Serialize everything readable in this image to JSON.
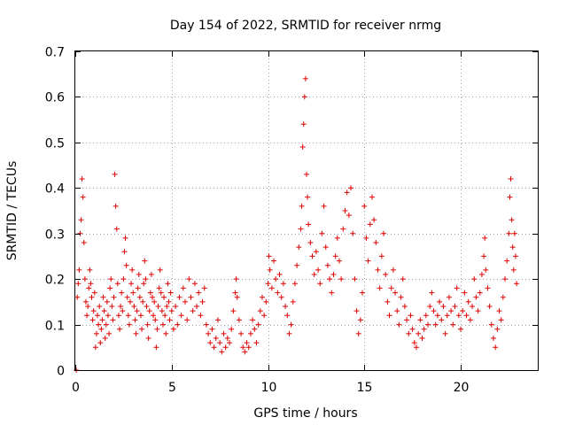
{
  "chart_data": {
    "type": "scatter",
    "title": "Day 154 of 2022, SRMTID for receiver nrmg",
    "xlabel": "GPS time / hours",
    "ylabel": "SRMTID / TECUs",
    "xlim": [
      0,
      24
    ],
    "ylim": [
      0,
      0.7
    ],
    "xticks": [
      0,
      5,
      10,
      15,
      20
    ],
    "yticks": [
      0,
      0.1,
      0.2,
      0.3,
      0.4,
      0.5,
      0.6,
      0.7
    ],
    "xtick_labels": [
      "0",
      "5",
      "10",
      "15",
      "20"
    ],
    "ytick_labels": [
      "0",
      "0.1",
      "0.2",
      "0.3",
      "0.4",
      "0.5",
      "0.6",
      "0.7"
    ],
    "grid": true,
    "marker": "plus",
    "color": "#e00000",
    "series": [
      {
        "name": "nrmg",
        "points": [
          [
            0.05,
            0.0
          ],
          [
            0.1,
            0.16
          ],
          [
            0.15,
            0.19
          ],
          [
            0.2,
            0.22
          ],
          [
            0.25,
            0.3
          ],
          [
            0.3,
            0.33
          ],
          [
            0.35,
            0.42
          ],
          [
            0.4,
            0.38
          ],
          [
            0.45,
            0.28
          ],
          [
            0.5,
            0.2
          ],
          [
            0.55,
            0.15
          ],
          [
            0.6,
            0.12
          ],
          [
            0.65,
            0.14
          ],
          [
            0.7,
            0.18
          ],
          [
            0.75,
            0.22
          ],
          [
            0.8,
            0.19
          ],
          [
            0.85,
            0.16
          ],
          [
            0.9,
            0.11
          ],
          [
            0.95,
            0.13
          ],
          [
            1.0,
            0.17
          ],
          [
            1.05,
            0.05
          ],
          [
            1.1,
            0.08
          ],
          [
            1.15,
            0.12
          ],
          [
            1.2,
            0.1
          ],
          [
            1.25,
            0.14
          ],
          [
            1.3,
            0.06
          ],
          [
            1.35,
            0.09
          ],
          [
            1.4,
            0.11
          ],
          [
            1.45,
            0.16
          ],
          [
            1.5,
            0.13
          ],
          [
            1.55,
            0.07
          ],
          [
            1.6,
            0.1
          ],
          [
            1.65,
            0.15
          ],
          [
            1.7,
            0.12
          ],
          [
            1.75,
            0.08
          ],
          [
            1.8,
            0.18
          ],
          [
            1.85,
            0.2
          ],
          [
            1.9,
            0.14
          ],
          [
            1.95,
            0.11
          ],
          [
            2.0,
            0.16
          ],
          [
            2.05,
            0.43
          ],
          [
            2.1,
            0.36
          ],
          [
            2.15,
            0.31
          ],
          [
            2.2,
            0.19
          ],
          [
            2.25,
            0.12
          ],
          [
            2.3,
            0.09
          ],
          [
            2.35,
            0.14
          ],
          [
            2.4,
            0.17
          ],
          [
            2.45,
            0.13
          ],
          [
            2.5,
            0.2
          ],
          [
            2.55,
            0.26
          ],
          [
            2.6,
            0.29
          ],
          [
            2.65,
            0.23
          ],
          [
            2.7,
            0.16
          ],
          [
            2.75,
            0.12
          ],
          [
            2.8,
            0.1
          ],
          [
            2.85,
            0.15
          ],
          [
            2.9,
            0.19
          ],
          [
            2.95,
            0.22
          ],
          [
            3.0,
            0.17
          ],
          [
            3.05,
            0.14
          ],
          [
            3.1,
            0.11
          ],
          [
            3.15,
            0.08
          ],
          [
            3.2,
            0.13
          ],
          [
            3.25,
            0.18
          ],
          [
            3.3,
            0.21
          ],
          [
            3.35,
            0.16
          ],
          [
            3.4,
            0.12
          ],
          [
            3.45,
            0.09
          ],
          [
            3.5,
            0.15
          ],
          [
            3.55,
            0.19
          ],
          [
            3.6,
            0.24
          ],
          [
            3.65,
            0.2
          ],
          [
            3.7,
            0.14
          ],
          [
            3.75,
            0.1
          ],
          [
            3.8,
            0.07
          ],
          [
            3.85,
            0.13
          ],
          [
            3.9,
            0.17
          ],
          [
            3.95,
            0.21
          ],
          [
            4.0,
            0.16
          ],
          [
            4.05,
            0.12
          ],
          [
            4.1,
            0.15
          ],
          [
            4.15,
            0.11
          ],
          [
            4.2,
            0.05
          ],
          [
            4.25,
            0.09
          ],
          [
            4.3,
            0.14
          ],
          [
            4.35,
            0.18
          ],
          [
            4.4,
            0.22
          ],
          [
            4.45,
            0.17
          ],
          [
            4.5,
            0.13
          ],
          [
            4.55,
            0.1
          ],
          [
            4.6,
            0.16
          ],
          [
            4.65,
            0.12
          ],
          [
            4.7,
            0.08
          ],
          [
            4.75,
            0.14
          ],
          [
            4.8,
            0.19
          ],
          [
            4.85,
            0.15
          ],
          [
            4.9,
            0.11
          ],
          [
            4.95,
            0.17
          ],
          [
            5.0,
            0.13
          ],
          [
            5.1,
            0.09
          ],
          [
            5.2,
            0.14
          ],
          [
            5.3,
            0.1
          ],
          [
            5.4,
            0.16
          ],
          [
            5.5,
            0.12
          ],
          [
            5.6,
            0.18
          ],
          [
            5.7,
            0.15
          ],
          [
            5.8,
            0.11
          ],
          [
            5.9,
            0.2
          ],
          [
            6.0,
            0.16
          ],
          [
            6.1,
            0.13
          ],
          [
            6.2,
            0.19
          ],
          [
            6.3,
            0.14
          ],
          [
            6.4,
            0.17
          ],
          [
            6.5,
            0.12
          ],
          [
            6.6,
            0.15
          ],
          [
            6.7,
            0.18
          ],
          [
            6.8,
            0.1
          ],
          [
            6.9,
            0.08
          ],
          [
            7.0,
            0.06
          ],
          [
            7.1,
            0.09
          ],
          [
            7.2,
            0.05
          ],
          [
            7.3,
            0.07
          ],
          [
            7.4,
            0.11
          ],
          [
            7.5,
            0.06
          ],
          [
            7.6,
            0.04
          ],
          [
            7.7,
            0.08
          ],
          [
            7.8,
            0.05
          ],
          [
            7.9,
            0.07
          ],
          [
            8.0,
            0.06
          ],
          [
            8.1,
            0.09
          ],
          [
            8.2,
            0.13
          ],
          [
            8.3,
            0.17
          ],
          [
            8.35,
            0.2
          ],
          [
            8.4,
            0.16
          ],
          [
            8.5,
            0.11
          ],
          [
            8.6,
            0.08
          ],
          [
            8.7,
            0.05
          ],
          [
            8.8,
            0.04
          ],
          [
            8.9,
            0.06
          ],
          [
            9.0,
            0.05
          ],
          [
            9.1,
            0.08
          ],
          [
            9.2,
            0.11
          ],
          [
            9.3,
            0.09
          ],
          [
            9.4,
            0.06
          ],
          [
            9.5,
            0.1
          ],
          [
            9.6,
            0.13
          ],
          [
            9.7,
            0.16
          ],
          [
            9.8,
            0.12
          ],
          [
            9.9,
            0.15
          ],
          [
            10.0,
            0.19
          ],
          [
            10.05,
            0.25
          ],
          [
            10.1,
            0.22
          ],
          [
            10.2,
            0.18
          ],
          [
            10.3,
            0.24
          ],
          [
            10.4,
            0.2
          ],
          [
            10.5,
            0.17
          ],
          [
            10.6,
            0.21
          ],
          [
            10.7,
            0.16
          ],
          [
            10.8,
            0.19
          ],
          [
            10.9,
            0.14
          ],
          [
            11.0,
            0.12
          ],
          [
            11.1,
            0.08
          ],
          [
            11.2,
            0.1
          ],
          [
            11.3,
            0.15
          ],
          [
            11.4,
            0.19
          ],
          [
            11.5,
            0.23
          ],
          [
            11.6,
            0.27
          ],
          [
            11.7,
            0.31
          ],
          [
            11.75,
            0.36
          ],
          [
            11.8,
            0.49
          ],
          [
            11.85,
            0.54
          ],
          [
            11.9,
            0.6
          ],
          [
            11.95,
            0.64
          ],
          [
            12.0,
            0.43
          ],
          [
            12.05,
            0.38
          ],
          [
            12.1,
            0.32
          ],
          [
            12.2,
            0.28
          ],
          [
            12.3,
            0.25
          ],
          [
            12.4,
            0.21
          ],
          [
            12.5,
            0.26
          ],
          [
            12.6,
            0.22
          ],
          [
            12.7,
            0.19
          ],
          [
            12.8,
            0.3
          ],
          [
            12.9,
            0.36
          ],
          [
            13.0,
            0.27
          ],
          [
            13.1,
            0.23
          ],
          [
            13.2,
            0.2
          ],
          [
            13.3,
            0.17
          ],
          [
            13.4,
            0.21
          ],
          [
            13.5,
            0.25
          ],
          [
            13.6,
            0.29
          ],
          [
            13.7,
            0.24
          ],
          [
            13.8,
            0.2
          ],
          [
            13.9,
            0.31
          ],
          [
            14.0,
            0.35
          ],
          [
            14.1,
            0.39
          ],
          [
            14.2,
            0.34
          ],
          [
            14.3,
            0.4
          ],
          [
            14.4,
            0.3
          ],
          [
            14.5,
            0.2
          ],
          [
            14.6,
            0.13
          ],
          [
            14.7,
            0.08
          ],
          [
            14.8,
            0.11
          ],
          [
            14.9,
            0.17
          ],
          [
            15.0,
            0.36
          ],
          [
            15.1,
            0.29
          ],
          [
            15.2,
            0.24
          ],
          [
            15.3,
            0.32
          ],
          [
            15.4,
            0.38
          ],
          [
            15.5,
            0.33
          ],
          [
            15.6,
            0.28
          ],
          [
            15.7,
            0.22
          ],
          [
            15.8,
            0.18
          ],
          [
            15.9,
            0.25
          ],
          [
            16.0,
            0.3
          ],
          [
            16.1,
            0.21
          ],
          [
            16.2,
            0.15
          ],
          [
            16.3,
            0.12
          ],
          [
            16.4,
            0.18
          ],
          [
            16.5,
            0.22
          ],
          [
            16.6,
            0.17
          ],
          [
            16.7,
            0.13
          ],
          [
            16.8,
            0.1
          ],
          [
            16.9,
            0.16
          ],
          [
            17.0,
            0.2
          ],
          [
            17.1,
            0.14
          ],
          [
            17.2,
            0.11
          ],
          [
            17.3,
            0.08
          ],
          [
            17.4,
            0.12
          ],
          [
            17.5,
            0.09
          ],
          [
            17.6,
            0.06
          ],
          [
            17.7,
            0.05
          ],
          [
            17.8,
            0.08
          ],
          [
            17.9,
            0.11
          ],
          [
            18.0,
            0.07
          ],
          [
            18.1,
            0.09
          ],
          [
            18.2,
            0.12
          ],
          [
            18.3,
            0.1
          ],
          [
            18.4,
            0.14
          ],
          [
            18.5,
            0.17
          ],
          [
            18.6,
            0.13
          ],
          [
            18.7,
            0.1
          ],
          [
            18.8,
            0.12
          ],
          [
            18.9,
            0.15
          ],
          [
            19.0,
            0.11
          ],
          [
            19.1,
            0.14
          ],
          [
            19.2,
            0.08
          ],
          [
            19.3,
            0.12
          ],
          [
            19.4,
            0.16
          ],
          [
            19.5,
            0.13
          ],
          [
            19.6,
            0.1
          ],
          [
            19.7,
            0.14
          ],
          [
            19.8,
            0.18
          ],
          [
            19.9,
            0.12
          ],
          [
            20.0,
            0.09
          ],
          [
            20.1,
            0.13
          ],
          [
            20.2,
            0.17
          ],
          [
            20.3,
            0.12
          ],
          [
            20.4,
            0.15
          ],
          [
            20.5,
            0.11
          ],
          [
            20.6,
            0.14
          ],
          [
            20.7,
            0.2
          ],
          [
            20.8,
            0.16
          ],
          [
            20.9,
            0.13
          ],
          [
            21.0,
            0.17
          ],
          [
            21.1,
            0.21
          ],
          [
            21.2,
            0.25
          ],
          [
            21.25,
            0.29
          ],
          [
            21.3,
            0.22
          ],
          [
            21.4,
            0.18
          ],
          [
            21.5,
            0.14
          ],
          [
            21.6,
            0.1
          ],
          [
            21.7,
            0.07
          ],
          [
            21.8,
            0.05
          ],
          [
            21.9,
            0.09
          ],
          [
            22.0,
            0.13
          ],
          [
            22.1,
            0.11
          ],
          [
            22.2,
            0.16
          ],
          [
            22.3,
            0.2
          ],
          [
            22.4,
            0.24
          ],
          [
            22.5,
            0.3
          ],
          [
            22.55,
            0.38
          ],
          [
            22.6,
            0.42
          ],
          [
            22.65,
            0.33
          ],
          [
            22.7,
            0.27
          ],
          [
            22.75,
            0.22
          ],
          [
            22.8,
            0.3
          ],
          [
            22.85,
            0.25
          ],
          [
            22.9,
            0.19
          ]
        ]
      }
    ]
  }
}
